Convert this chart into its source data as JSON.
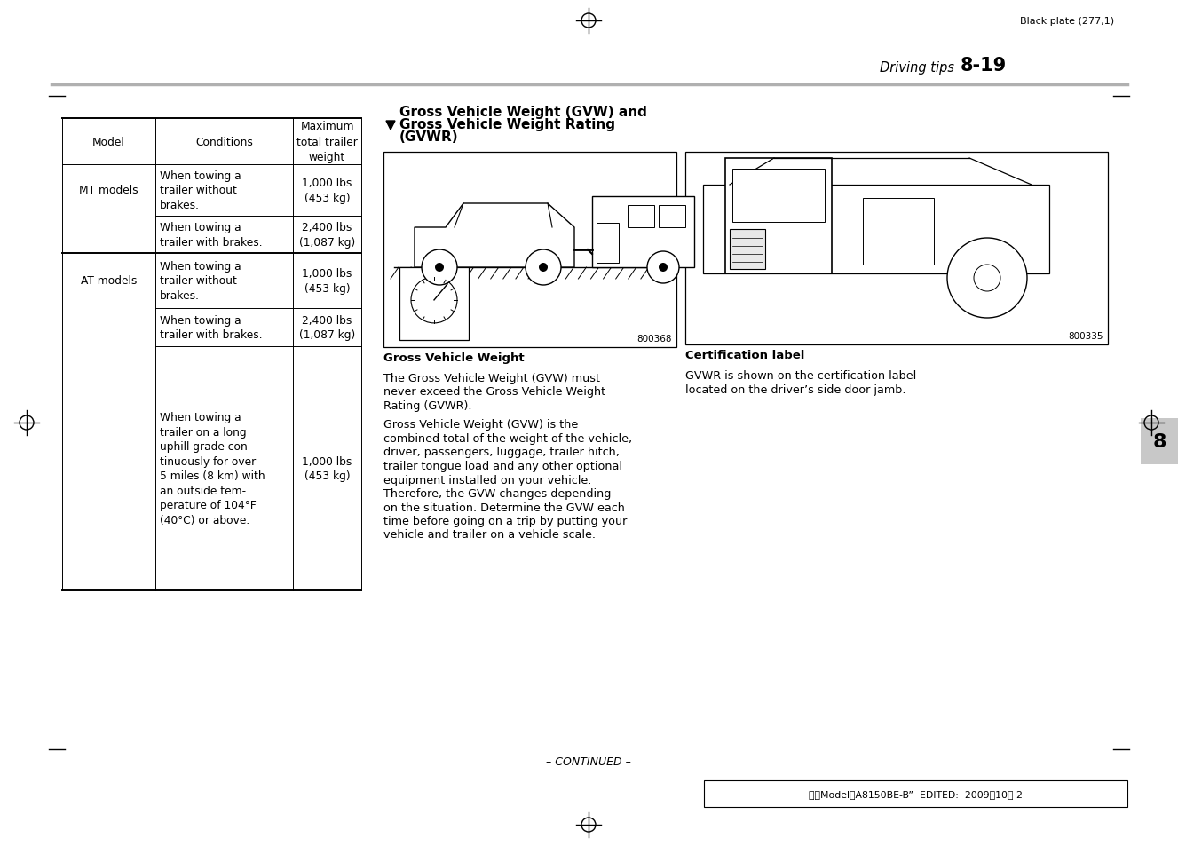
{
  "page_header_text": "Black plate (277,1)",
  "header_italic": "Driving tips",
  "header_bold": "8-19",
  "table_headers": [
    "Model",
    "Conditions",
    "Maximum\ntotal trailer\nweight"
  ],
  "section_title_line1": "Gross Vehicle Weight (GVW) and",
  "section_title_line2": "Gross Vehicle Weight Rating",
  "section_title_line3": "(GVWR)",
  "figure_caption": "Gross Vehicle Weight",
  "figure_number": "800368",
  "body_text_para1_lines": [
    "The Gross Vehicle Weight (GVW) must",
    "never exceed the Gross Vehicle Weight",
    "Rating (GVWR)."
  ],
  "body_text_para2_lines": [
    "Gross Vehicle Weight (GVW) is the",
    "combined total of the weight of the vehicle,",
    "driver, passengers, luggage, trailer hitch,",
    "trailer tongue load and any other optional",
    "equipment installed on your vehicle.",
    "Therefore, the GVW changes depending",
    "on the situation. Determine the GVW each",
    "time before going on a trip by putting your",
    "vehicle and trailer on a vehicle scale."
  ],
  "cert_label_caption": "Certification label",
  "cert_label_text_lines": [
    "GVWR is shown on the certification label",
    "located on the driver’s side door jamb."
  ],
  "cert_figure_number": "800335",
  "footer_continued": "– CONTINUED –",
  "footer_model_text": "北米ModelＢA8150BE-B”  EDITED:  2009／10／ 2",
  "tab_number": "8",
  "bg_color": "#ffffff"
}
